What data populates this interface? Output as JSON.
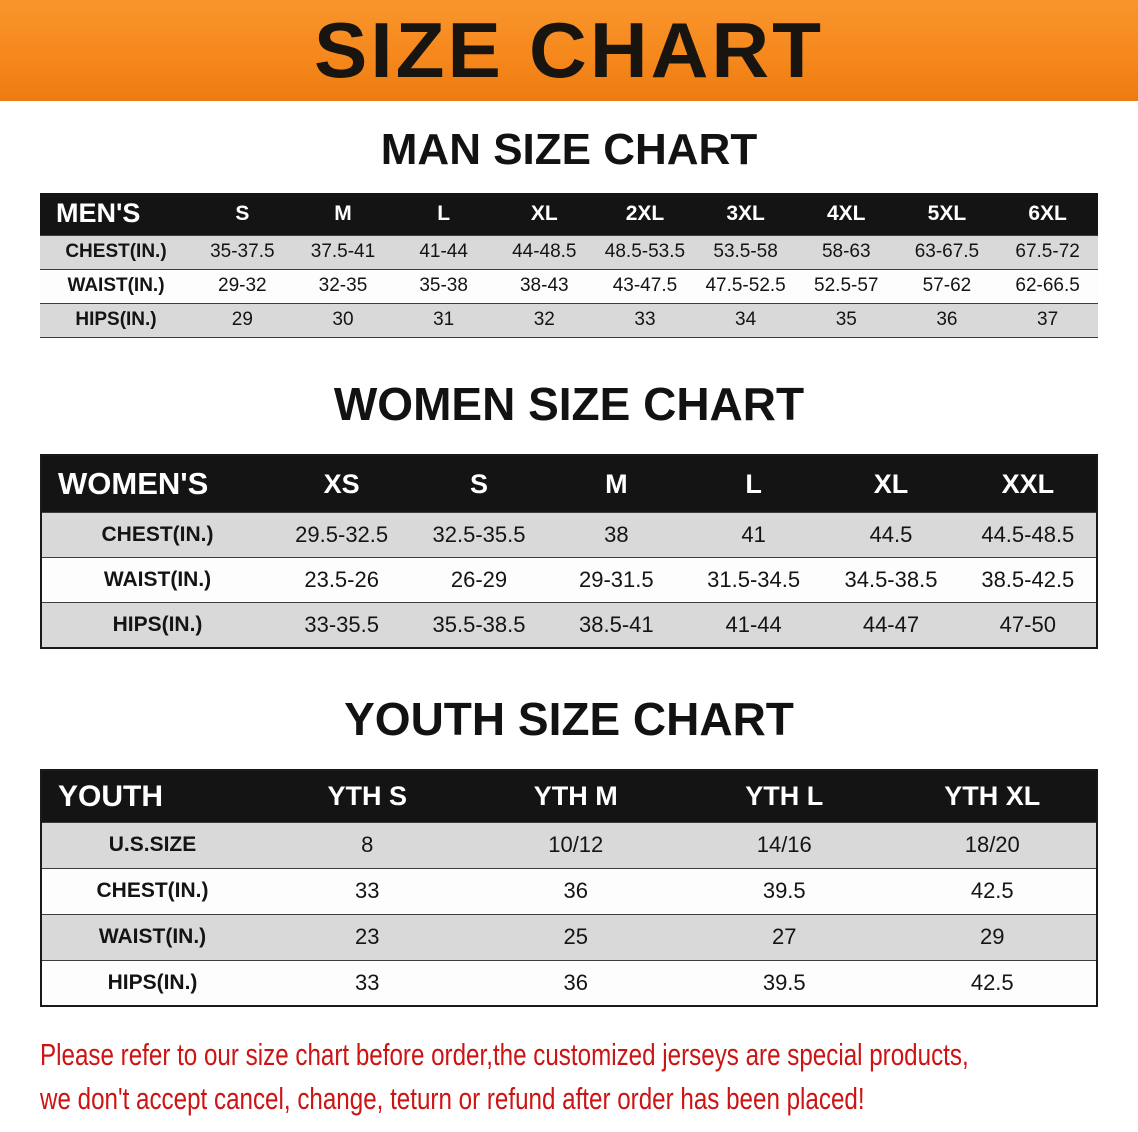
{
  "banner": {
    "title": "SIZE CHART"
  },
  "colors": {
    "banner_orange": "#f6881d",
    "table_header_black": "#141414",
    "row_stripe_gray": "#d9d9d9",
    "disclaimer_red": "#cc1414"
  },
  "chart_data": [
    {
      "type": "table",
      "title": "MAN SIZE CHART",
      "columns": [
        "MEN'S",
        "S",
        "M",
        "L",
        "XL",
        "2XL",
        "3XL",
        "4XL",
        "5XL",
        "6XL"
      ],
      "rows": [
        [
          "CHEST(IN.)",
          "35-37.5",
          "37.5-41",
          "41-44",
          "44-48.5",
          "48.5-53.5",
          "53.5-58",
          "58-63",
          "63-67.5",
          "67.5-72"
        ],
        [
          "WAIST(IN.)",
          "29-32",
          "32-35",
          "35-38",
          "38-43",
          "43-47.5",
          "47.5-52.5",
          "52.5-57",
          "57-62",
          "62-66.5"
        ],
        [
          "HIPS(IN.)",
          "29",
          "30",
          "31",
          "32",
          "33",
          "34",
          "35",
          "36",
          "37"
        ]
      ]
    },
    {
      "type": "table",
      "title": "WOMEN SIZE CHART",
      "columns": [
        "WOMEN'S",
        "XS",
        "S",
        "M",
        "L",
        "XL",
        "XXL"
      ],
      "rows": [
        [
          "CHEST(IN.)",
          "29.5-32.5",
          "32.5-35.5",
          "38",
          "41",
          "44.5",
          "44.5-48.5"
        ],
        [
          "WAIST(IN.)",
          "23.5-26",
          "26-29",
          "29-31.5",
          "31.5-34.5",
          "34.5-38.5",
          "38.5-42.5"
        ],
        [
          "HIPS(IN.)",
          "33-35.5",
          "35.5-38.5",
          "38.5-41",
          "41-44",
          "44-47",
          "47-50"
        ]
      ]
    },
    {
      "type": "table",
      "title": "YOUTH SIZE CHART",
      "columns": [
        "YOUTH",
        "YTH S",
        "YTH M",
        "YTH L",
        "YTH XL"
      ],
      "rows": [
        [
          "U.S.SIZE",
          "8",
          "10/12",
          "14/16",
          "18/20"
        ],
        [
          "CHEST(IN.)",
          "33",
          "36",
          "39.5",
          "42.5"
        ],
        [
          "WAIST(IN.)",
          "23",
          "25",
          "27",
          "29"
        ],
        [
          "HIPS(IN.)",
          "33",
          "36",
          "39.5",
          "42.5"
        ]
      ]
    }
  ],
  "disclaimer": {
    "line1": "Please refer to our size chart before order,the customized jerseys are special products,",
    "line2": "we don't accept cancel, change, teturn or refund after order has been placed!"
  }
}
